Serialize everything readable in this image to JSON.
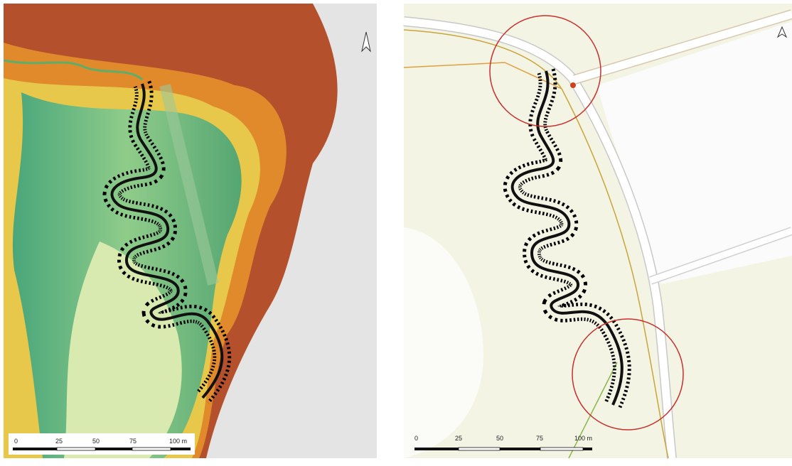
{
  "panels": [
    {
      "scale_labels": [
        "0",
        "25",
        "50",
        "75",
        "100 m"
      ]
    },
    {
      "scale_labels": [
        "0",
        "25",
        "50",
        "75",
        "100 m"
      ]
    }
  ]
}
